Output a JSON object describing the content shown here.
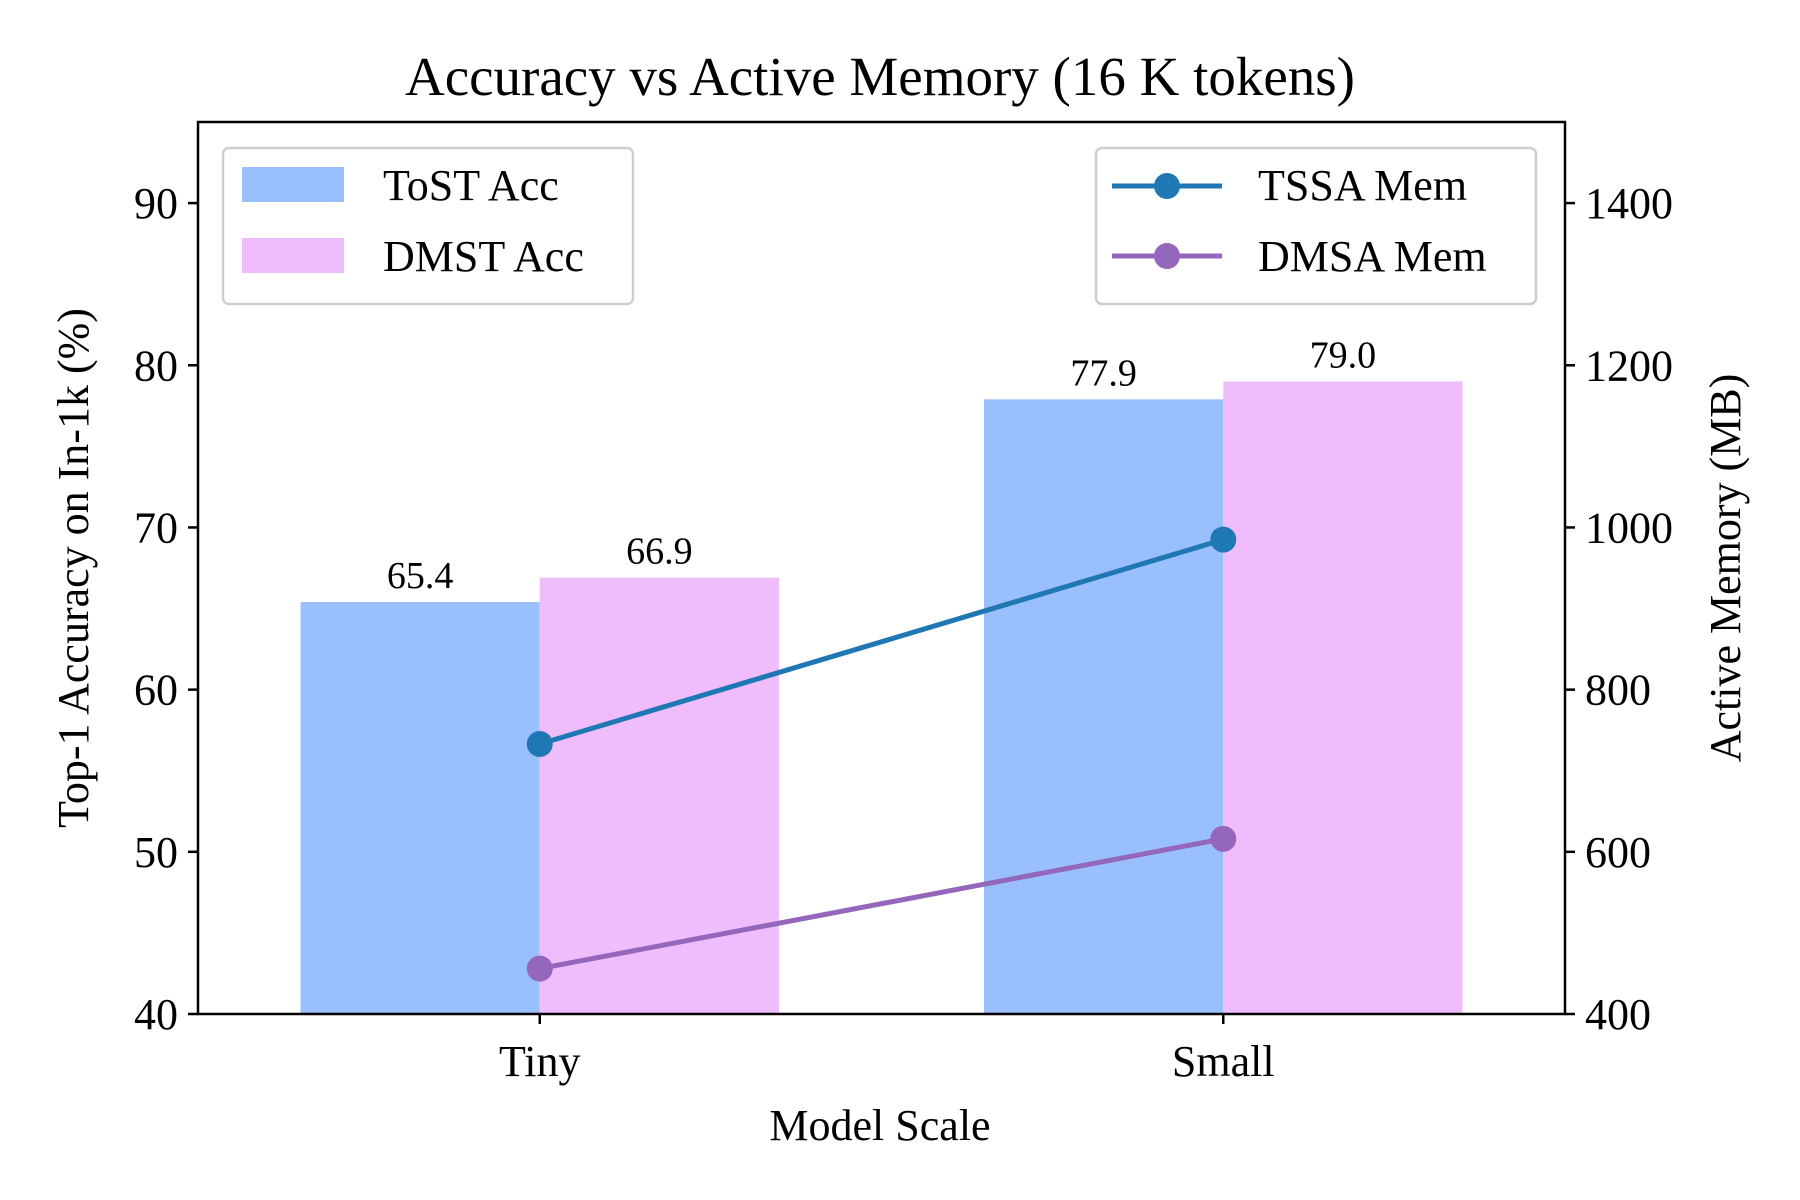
{
  "chart_data": {
    "type": "bar",
    "title": "Accuracy vs Active Memory (16 K tokens)",
    "xlabel": "Model Scale",
    "ylabel": "Top-1 Accuracy on In-1k (%)",
    "y2label": "Active Memory (MB)",
    "categories": [
      "Tiny",
      "Small"
    ],
    "ylim": [
      40,
      95
    ],
    "y2lim": [
      400,
      1500
    ],
    "yticks": [
      40,
      50,
      60,
      70,
      80,
      90
    ],
    "y2ticks": [
      400,
      600,
      800,
      1000,
      1200,
      1400
    ],
    "bar_series": [
      {
        "name": "ToST Acc",
        "color": "#99bffc",
        "values": [
          65.4,
          77.9
        ],
        "labels": [
          "65.4",
          "77.9"
        ]
      },
      {
        "name": "DMST Acc",
        "color": "#f0bdfc",
        "values": [
          66.9,
          79.0
        ],
        "labels": [
          "66.9",
          "79.0"
        ]
      }
    ],
    "line_series": [
      {
        "name": "TSSA Mem",
        "color": "#1f77b4",
        "values": [
          733,
          985
        ]
      },
      {
        "name": "DMSA Mem",
        "color": "#9467bd",
        "values": [
          456,
          616
        ]
      }
    ],
    "bar_legend_position": "upper-left",
    "line_legend_position": "upper-right",
    "grid": false
  }
}
